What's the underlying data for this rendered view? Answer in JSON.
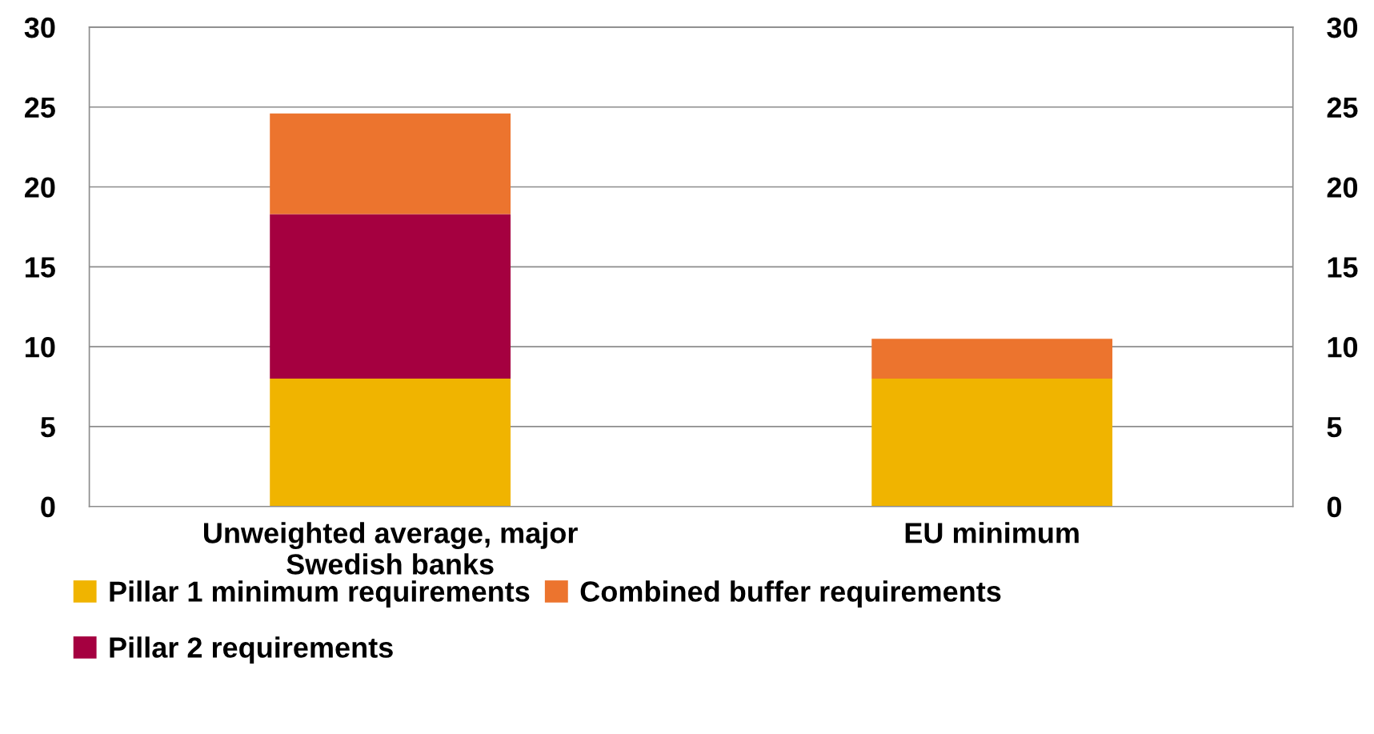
{
  "chart_data": {
    "type": "bar",
    "stacked": true,
    "categories": [
      "Unweighted average, major Swedish banks",
      "EU minimum"
    ],
    "series": [
      {
        "name": "Pillar 1 minimum requirements",
        "color": "#f0b400",
        "values": [
          8,
          8
        ]
      },
      {
        "name": "Pillar 2 requirements",
        "color": "#a50040",
        "values": [
          10.3,
          0
        ]
      },
      {
        "name": "Combined buffer requirements",
        "color": "#ec742e",
        "values": [
          6.3,
          2.5
        ]
      }
    ],
    "ylim": [
      0,
      30
    ],
    "yticks": [
      0,
      5,
      10,
      15,
      20,
      25,
      30
    ],
    "y2lim": [
      0,
      30
    ],
    "y2ticks": [
      0,
      5,
      10,
      15,
      20,
      25,
      30
    ],
    "grid": "y",
    "legend": "bottom"
  }
}
